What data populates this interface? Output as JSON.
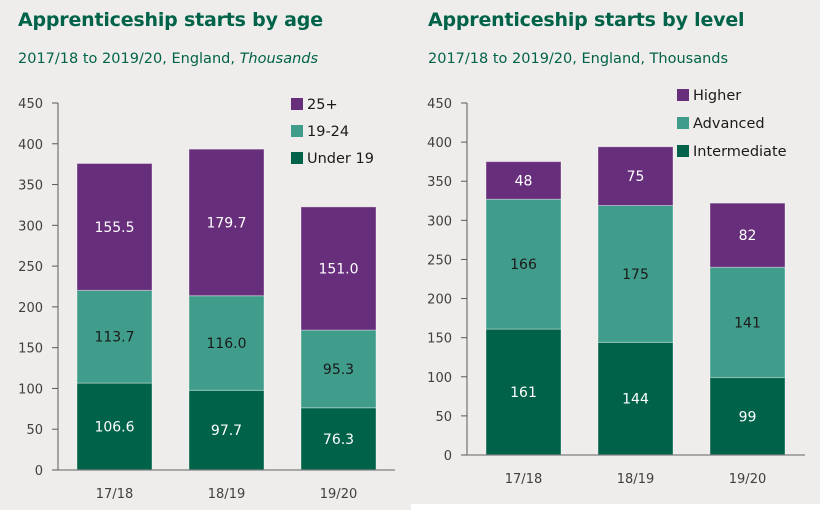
{
  "chart_data": [
    {
      "type": "bar",
      "stacked": true,
      "title": "Apprenticeship starts by age",
      "subtitle_main": "2017/18 to 2019/20, England, ",
      "subtitle_unit": "Thousands",
      "xlabel": "",
      "ylabel": "",
      "ylim": [
        0,
        450
      ],
      "yticks": [
        0,
        50,
        100,
        150,
        200,
        250,
        300,
        350,
        400,
        450
      ],
      "categories": [
        "17/18",
        "18/19",
        "19/20"
      ],
      "legend_position": "top-right",
      "series": [
        {
          "name": "Under 19",
          "color": "#006349",
          "label_color": "#ffffff",
          "values": [
            106.6,
            97.7,
            76.3
          ],
          "labels": [
            "106.6",
            "97.7",
            "76.3"
          ]
        },
        {
          "name": "19-24",
          "color": "#419d8b",
          "label_color": "#1a1a1a",
          "values": [
            113.7,
            116.0,
            95.3
          ],
          "labels": [
            "113.7",
            "116.0",
            "95.3"
          ]
        },
        {
          "name": "25+",
          "color": "#672e7c",
          "label_color": "#ffffff",
          "values": [
            155.5,
            179.7,
            151.0
          ],
          "labels": [
            "155.5",
            "179.7",
            "151.0"
          ]
        }
      ],
      "legend_order": [
        "25+",
        "19-24",
        "Under 19"
      ]
    },
    {
      "type": "bar",
      "stacked": true,
      "title": "Apprenticeship starts by level",
      "subtitle_main": "2017/18 to 2019/20, England, Thousands",
      "xlabel": "",
      "ylabel": "",
      "ylim": [
        0,
        450
      ],
      "yticks": [
        0,
        50,
        100,
        150,
        200,
        250,
        300,
        350,
        400,
        450
      ],
      "categories": [
        "17/18",
        "18/19",
        "19/20"
      ],
      "legend_position": "top-right",
      "series": [
        {
          "name": "Intermediate",
          "color": "#006349",
          "label_color": "#ffffff",
          "values": [
            161,
            144,
            99
          ],
          "labels": [
            "161",
            "144",
            "99"
          ]
        },
        {
          "name": "Advanced",
          "color": "#419d8b",
          "label_color": "#1a1a1a",
          "values": [
            166,
            175,
            141
          ],
          "labels": [
            "166",
            "175",
            "141"
          ]
        },
        {
          "name": "Higher",
          "color": "#672e7c",
          "label_color": "#ffffff",
          "values": [
            48,
            75,
            82
          ],
          "labels": [
            "48",
            "75",
            "82"
          ]
        }
      ],
      "legend_order": [
        "Higher",
        "Advanced",
        "Intermediate"
      ]
    }
  ]
}
